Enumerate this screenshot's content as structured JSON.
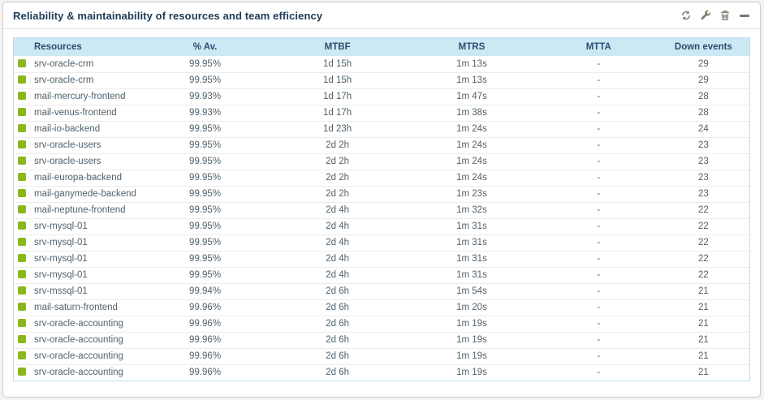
{
  "panel": {
    "title": "Reliability & maintainability of resources and team efficiency"
  },
  "toolbar": {
    "icons": [
      "refresh-icon",
      "wrench-icon",
      "trash-icon",
      "minimize-icon"
    ]
  },
  "colors": {
    "status_green": "#8ab71c",
    "header_bg": "#cde8f5",
    "header_text": "#2a4e70",
    "title_text": "#1d3b55",
    "table_border_blue": "#bfdeef",
    "icon_gray": "#7e7669"
  },
  "table": {
    "columns": [
      {
        "key": "resource",
        "label": "Resources",
        "align": "left"
      },
      {
        "key": "availability",
        "label": "% Av.",
        "align": "center"
      },
      {
        "key": "mtbf",
        "label": "MTBF",
        "align": "center"
      },
      {
        "key": "mtrs",
        "label": "MTRS",
        "align": "center"
      },
      {
        "key": "mtta",
        "label": "MTTA",
        "align": "center"
      },
      {
        "key": "down_events",
        "label": "Down events",
        "align": "center"
      }
    ],
    "rows": [
      {
        "status": "green",
        "resource": "srv-oracle-crm",
        "availability": "99.95%",
        "mtbf": "1d 15h",
        "mtrs": "1m 13s",
        "mtta": "-",
        "down_events": "29"
      },
      {
        "status": "green",
        "resource": "srv-oracle-crm",
        "availability": "99.95%",
        "mtbf": "1d 15h",
        "mtrs": "1m 13s",
        "mtta": "-",
        "down_events": "29"
      },
      {
        "status": "green",
        "resource": "mail-mercury-frontend",
        "availability": "99.93%",
        "mtbf": "1d 17h",
        "mtrs": "1m 47s",
        "mtta": "-",
        "down_events": "28"
      },
      {
        "status": "green",
        "resource": "mail-venus-frontend",
        "availability": "99.93%",
        "mtbf": "1d 17h",
        "mtrs": "1m 38s",
        "mtta": "-",
        "down_events": "28"
      },
      {
        "status": "green",
        "resource": "mail-io-backend",
        "availability": "99.95%",
        "mtbf": "1d 23h",
        "mtrs": "1m 24s",
        "mtta": "-",
        "down_events": "24"
      },
      {
        "status": "green",
        "resource": "srv-oracle-users",
        "availability": "99.95%",
        "mtbf": "2d 2h",
        "mtrs": "1m 24s",
        "mtta": "-",
        "down_events": "23"
      },
      {
        "status": "green",
        "resource": "srv-oracle-users",
        "availability": "99.95%",
        "mtbf": "2d 2h",
        "mtrs": "1m 24s",
        "mtta": "-",
        "down_events": "23"
      },
      {
        "status": "green",
        "resource": "mail-europa-backend",
        "availability": "99.95%",
        "mtbf": "2d 2h",
        "mtrs": "1m 24s",
        "mtta": "-",
        "down_events": "23"
      },
      {
        "status": "green",
        "resource": "mail-ganymede-backend",
        "availability": "99.95%",
        "mtbf": "2d 2h",
        "mtrs": "1m 23s",
        "mtta": "-",
        "down_events": "23"
      },
      {
        "status": "green",
        "resource": "mail-neptune-frontend",
        "availability": "99.95%",
        "mtbf": "2d 4h",
        "mtrs": "1m 32s",
        "mtta": "-",
        "down_events": "22"
      },
      {
        "status": "green",
        "resource": "srv-mysql-01",
        "availability": "99.95%",
        "mtbf": "2d 4h",
        "mtrs": "1m 31s",
        "mtta": "-",
        "down_events": "22"
      },
      {
        "status": "green",
        "resource": "srv-mysql-01",
        "availability": "99.95%",
        "mtbf": "2d 4h",
        "mtrs": "1m 31s",
        "mtta": "-",
        "down_events": "22"
      },
      {
        "status": "green",
        "resource": "srv-mysql-01",
        "availability": "99.95%",
        "mtbf": "2d 4h",
        "mtrs": "1m 31s",
        "mtta": "-",
        "down_events": "22"
      },
      {
        "status": "green",
        "resource": "srv-mysql-01",
        "availability": "99.95%",
        "mtbf": "2d 4h",
        "mtrs": "1m 31s",
        "mtta": "-",
        "down_events": "22"
      },
      {
        "status": "green",
        "resource": "srv-mssql-01",
        "availability": "99.94%",
        "mtbf": "2d 6h",
        "mtrs": "1m 54s",
        "mtta": "-",
        "down_events": "21"
      },
      {
        "status": "green",
        "resource": "mail-saturn-frontend",
        "availability": "99.96%",
        "mtbf": "2d 6h",
        "mtrs": "1m 20s",
        "mtta": "-",
        "down_events": "21"
      },
      {
        "status": "green",
        "resource": "srv-oracle-accounting",
        "availability": "99.96%",
        "mtbf": "2d 6h",
        "mtrs": "1m 19s",
        "mtta": "-",
        "down_events": "21"
      },
      {
        "status": "green",
        "resource": "srv-oracle-accounting",
        "availability": "99.96%",
        "mtbf": "2d 6h",
        "mtrs": "1m 19s",
        "mtta": "-",
        "down_events": "21"
      },
      {
        "status": "green",
        "resource": "srv-oracle-accounting",
        "availability": "99.96%",
        "mtbf": "2d 6h",
        "mtrs": "1m 19s",
        "mtta": "-",
        "down_events": "21"
      },
      {
        "status": "green",
        "resource": "srv-oracle-accounting",
        "availability": "99.96%",
        "mtbf": "2d 6h",
        "mtrs": "1m 19s",
        "mtta": "-",
        "down_events": "21"
      }
    ]
  }
}
